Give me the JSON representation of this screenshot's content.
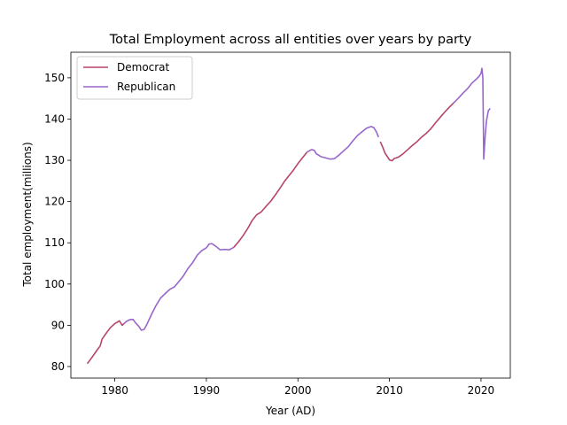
{
  "chart_data": {
    "type": "line",
    "title": "Total Employment across all entities over years by party",
    "xlabel": "Year (AD)",
    "ylabel": "Total employment(millions)",
    "xlim": [
      1975.2,
      2023.2
    ],
    "ylim": [
      77.2,
      156.2
    ],
    "xticks": [
      1980,
      1990,
      2000,
      2010,
      2020
    ],
    "yticks": [
      80,
      90,
      100,
      110,
      120,
      130,
      140,
      150
    ],
    "grid": false,
    "legend_position": "top-left",
    "legend": [
      "Democrat",
      "Republican"
    ],
    "colors": {
      "Democrat": "#b5446e",
      "Republican": "#9966cc"
    },
    "segments": [
      {
        "party": "Democrat",
        "points": [
          [
            1977.0,
            80.7
          ],
          [
            1977.5,
            82.2
          ],
          [
            1978.0,
            83.8
          ],
          [
            1978.4,
            85.0
          ],
          [
            1978.6,
            86.6
          ],
          [
            1979.0,
            87.9
          ],
          [
            1979.5,
            89.4
          ],
          [
            1980.0,
            90.4
          ],
          [
            1980.3,
            90.8
          ],
          [
            1980.5,
            91.1
          ],
          [
            1980.8,
            90.0
          ],
          [
            1981.0,
            90.4
          ]
        ]
      },
      {
        "party": "Republican",
        "points": [
          [
            1981.0,
            90.4
          ],
          [
            1981.3,
            91.0
          ],
          [
            1981.7,
            91.4
          ],
          [
            1982.0,
            91.4
          ],
          [
            1982.3,
            90.5
          ],
          [
            1982.6,
            89.8
          ],
          [
            1982.9,
            88.8
          ],
          [
            1983.2,
            89.0
          ],
          [
            1983.5,
            90.2
          ],
          [
            1984.0,
            92.6
          ],
          [
            1984.5,
            94.8
          ],
          [
            1985.0,
            96.6
          ],
          [
            1985.5,
            97.7
          ],
          [
            1986.0,
            98.7
          ],
          [
            1986.5,
            99.3
          ],
          [
            1987.0,
            100.6
          ],
          [
            1987.5,
            102.0
          ],
          [
            1988.0,
            103.8
          ],
          [
            1988.5,
            105.2
          ],
          [
            1989.0,
            107.0
          ],
          [
            1989.5,
            108.1
          ],
          [
            1990.0,
            108.8
          ],
          [
            1990.3,
            109.7
          ],
          [
            1990.6,
            109.8
          ],
          [
            1991.0,
            109.2
          ],
          [
            1991.5,
            108.3
          ],
          [
            1992.0,
            108.4
          ],
          [
            1992.5,
            108.3
          ],
          [
            1993.0,
            108.9
          ]
        ]
      },
      {
        "party": "Democrat",
        "points": [
          [
            1993.0,
            108.9
          ],
          [
            1993.5,
            110.2
          ],
          [
            1994.0,
            111.7
          ],
          [
            1994.5,
            113.4
          ],
          [
            1995.0,
            115.4
          ],
          [
            1995.5,
            116.8
          ],
          [
            1996.0,
            117.5
          ],
          [
            1996.5,
            118.8
          ],
          [
            1997.0,
            120.0
          ],
          [
            1997.5,
            121.5
          ],
          [
            1998.0,
            123.1
          ],
          [
            1998.5,
            124.8
          ],
          [
            1999.0,
            126.2
          ],
          [
            1999.5,
            127.6
          ],
          [
            2000.0,
            129.2
          ],
          [
            2000.5,
            130.6
          ],
          [
            2001.0,
            132.0
          ]
        ]
      },
      {
        "party": "Republican",
        "points": [
          [
            2001.0,
            132.0
          ],
          [
            2001.5,
            132.6
          ],
          [
            2001.8,
            132.4
          ],
          [
            2002.0,
            131.6
          ],
          [
            2002.5,
            130.9
          ],
          [
            2003.0,
            130.6
          ],
          [
            2003.5,
            130.3
          ],
          [
            2004.0,
            130.4
          ],
          [
            2004.5,
            131.3
          ],
          [
            2005.0,
            132.3
          ],
          [
            2005.5,
            133.3
          ],
          [
            2006.0,
            134.7
          ],
          [
            2006.5,
            136.0
          ],
          [
            2007.0,
            136.9
          ],
          [
            2007.5,
            137.8
          ],
          [
            2008.0,
            138.2
          ],
          [
            2008.3,
            137.9
          ],
          [
            2008.6,
            136.8
          ],
          [
            2008.8,
            135.6
          ]
        ]
      },
      {
        "party": "Democrat",
        "points": [
          [
            2009.0,
            134.5
          ],
          [
            2009.3,
            133.0
          ],
          [
            2009.5,
            131.8
          ],
          [
            2009.8,
            130.8
          ],
          [
            2010.0,
            130.1
          ],
          [
            2010.3,
            129.9
          ],
          [
            2010.5,
            130.4
          ],
          [
            2011.0,
            130.8
          ],
          [
            2011.5,
            131.6
          ],
          [
            2012.0,
            132.6
          ],
          [
            2012.5,
            133.6
          ],
          [
            2013.0,
            134.5
          ],
          [
            2013.5,
            135.6
          ],
          [
            2014.0,
            136.5
          ],
          [
            2014.5,
            137.6
          ],
          [
            2015.0,
            139.0
          ],
          [
            2015.5,
            140.3
          ],
          [
            2016.0,
            141.6
          ],
          [
            2016.5,
            142.8
          ],
          [
            2017.0,
            143.9
          ]
        ]
      },
      {
        "party": "Republican",
        "points": [
          [
            2017.0,
            143.9
          ],
          [
            2017.5,
            145.0
          ],
          [
            2018.0,
            146.2
          ],
          [
            2018.5,
            147.3
          ],
          [
            2019.0,
            148.7
          ],
          [
            2019.5,
            149.7
          ],
          [
            2019.8,
            150.4
          ],
          [
            2020.0,
            151.1
          ],
          [
            2020.1,
            152.3
          ],
          [
            2020.2,
            150.0
          ],
          [
            2020.3,
            130.3
          ],
          [
            2020.45,
            135.8
          ],
          [
            2020.6,
            139.6
          ],
          [
            2020.8,
            142.0
          ],
          [
            2021.0,
            142.6
          ]
        ]
      }
    ]
  }
}
